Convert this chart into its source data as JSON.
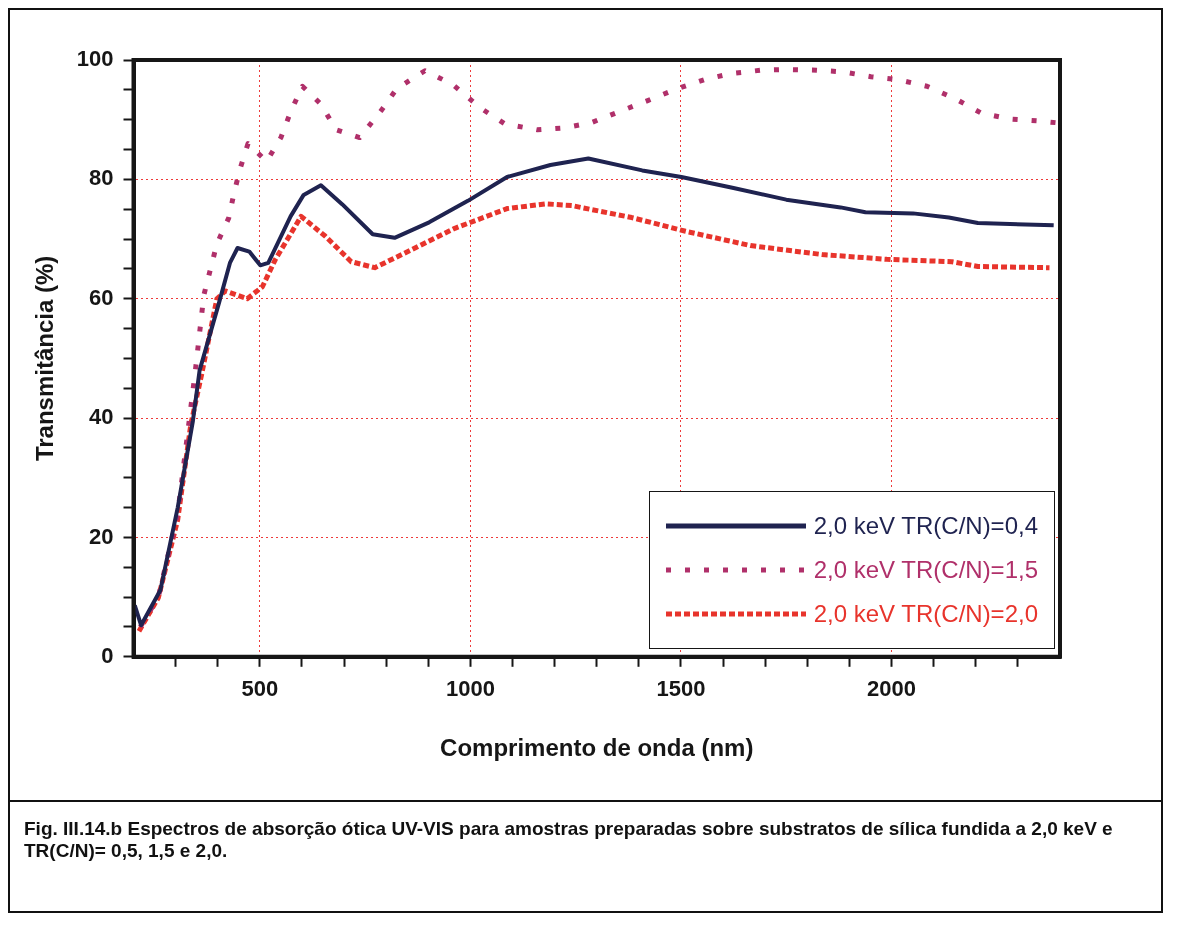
{
  "chart_data": {
    "type": "line",
    "xlabel": "Comprimento de onda (nm)",
    "ylabel": "Transmitância (%)",
    "xlim": [
      200,
      2400
    ],
    "ylim": [
      0,
      100
    ],
    "xticks": [
      {
        "value": 300,
        "label": null
      },
      {
        "value": 400,
        "label": null
      },
      500,
      {
        "value": 600,
        "label": null
      },
      {
        "value": 700,
        "label": null
      },
      {
        "value": 800,
        "label": null
      },
      {
        "value": 900,
        "label": null
      },
      1000,
      {
        "value": 1100,
        "label": null
      },
      {
        "value": 1200,
        "label": null
      },
      {
        "value": 1300,
        "label": null
      },
      {
        "value": 1400,
        "label": null
      },
      1500,
      {
        "value": 1600,
        "label": null
      },
      {
        "value": 1700,
        "label": null
      },
      {
        "value": 1800,
        "label": null
      },
      {
        "value": 1900,
        "label": null
      },
      2000,
      {
        "value": 2100,
        "label": null
      },
      {
        "value": 2200,
        "label": null
      },
      {
        "value": 2300,
        "label": null
      }
    ],
    "yticks": [
      0,
      {
        "value": 5,
        "label": null
      },
      {
        "value": 10,
        "label": null
      },
      {
        "value": 15,
        "label": null
      },
      20,
      {
        "value": 25,
        "label": null
      },
      {
        "value": 30,
        "label": null
      },
      {
        "value": 35,
        "label": null
      },
      40,
      {
        "value": 45,
        "label": null
      },
      {
        "value": 50,
        "label": null
      },
      {
        "value": 55,
        "label": null
      },
      60,
      {
        "value": 65,
        "label": null
      },
      {
        "value": 70,
        "label": null
      },
      {
        "value": 75,
        "label": null
      },
      80,
      {
        "value": 85,
        "label": null
      },
      {
        "value": 90,
        "label": null
      },
      {
        "value": 95,
        "label": null
      },
      100
    ],
    "grid": true,
    "legend": "bottom right",
    "marker": "none",
    "series": [
      {
        "name": "2,0 keV TR(C/N)=0,4",
        "color": "#1f2350",
        "line_style": "solid",
        "x": [
          203,
          218,
          264,
          305,
          341,
          357,
          403,
          429,
          447,
          475,
          501,
          520,
          573,
          604,
          645,
          696,
          768,
          820,
          902,
          994,
          1087,
          1190,
          1280,
          1408,
          1501,
          1622,
          1750,
          1879,
          1938,
          2051,
          2136,
          2205,
          2385
        ],
        "values": [
          8.6,
          5.3,
          11.2,
          25,
          39.5,
          48,
          59.3,
          66,
          68.5,
          67.9,
          65.6,
          66,
          73.8,
          77.4,
          79,
          75.8,
          70.8,
          70.2,
          72.8,
          76.4,
          80.4,
          82.4,
          83.5,
          81.5,
          80.4,
          78.6,
          76.6,
          75.3,
          74.5,
          74.3,
          73.6,
          72.7,
          72.3
        ]
      },
      {
        "name": "2,0 keV TR(C/N)=1,5",
        "color": "#b0306a",
        "line_style": "dashed",
        "x": [
          216,
          259,
          305,
          347,
          367,
          398,
          426,
          439,
          454,
          472,
          516,
          550,
          573,
          601,
          645,
          681,
          737,
          789,
          825,
          892,
          958,
          1025,
          1082,
          1159,
          1221,
          1287,
          1352,
          1421,
          1488,
          1555,
          1617,
          1691,
          1755,
          1822,
          1886,
          1951,
          2015,
          2084,
          2149,
          2213,
          2282,
          2346,
          2390
        ],
        "values": [
          5,
          10,
          24,
          48,
          60.6,
          69.2,
          73.5,
          77.8,
          82,
          86,
          83,
          87,
          91.3,
          95.6,
          92.6,
          88.3,
          87,
          91.6,
          95.2,
          98.2,
          95.9,
          91.9,
          89.3,
          88.3,
          88.6,
          89.5,
          91.3,
          93.2,
          95.1,
          96.7,
          97.7,
          98.3,
          98.4,
          98.3,
          98,
          97.2,
          96.7,
          95.6,
          93.6,
          91.1,
          90.1,
          89.8,
          89.5
        ]
      },
      {
        "name": "2,0 keV TR(C/N)=2,0",
        "color": "#e8342c",
        "line_style": "dotted",
        "x": [
          213,
          259,
          305,
          336,
          362,
          398,
          418,
          470,
          506,
          537,
          598,
          655,
          717,
          773,
          840,
          963,
          1087,
          1179,
          1241,
          1383,
          1511,
          1665,
          1835,
          1989,
          2143,
          2205,
          2375
        ],
        "values": [
          4.3,
          9.9,
          23,
          38.9,
          47.4,
          60,
          61.3,
          60,
          62,
          66.6,
          73.8,
          70.5,
          66.2,
          65.2,
          67.5,
          71.8,
          75.1,
          75.9,
          75.6,
          73.6,
          71.3,
          68.9,
          67.4,
          66.6,
          66.2,
          65.4,
          65.2
        ]
      }
    ],
    "annotations": [
      "Fig. III.14.b Espectros de absorção ótica UV-VIS para amostras preparadas sobre substratos de sílica fundida a 2,0 keV e TR(C/N)= 0,5, 1,5 e 2,0."
    ]
  }
}
